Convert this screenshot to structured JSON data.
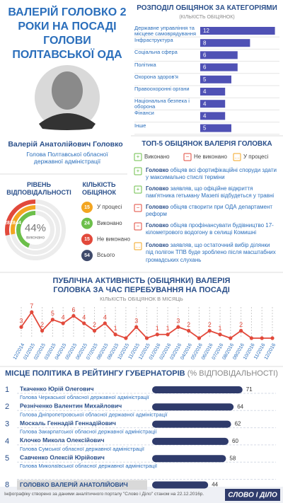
{
  "header": {
    "title": "ВАЛЕРІЙ ГОЛОВКО 2 РОКИ НА ПОСАДІ ГОЛОВИ ПОЛТАВСЬКОЇ ОДА"
  },
  "profile": {
    "name": "Валерій Анатолійович Головко",
    "position": "Голова Полтавської обласної державної адміністрації"
  },
  "chart_data": [
    {
      "type": "hbar",
      "title": "РОЗПОДІЛ ОБІЦЯНОК ЗА КАТЕГОРІЯМИ",
      "subtitle": "(КІЛЬКІСТЬ ОБІЦЯНОК)",
      "categories": [
        "Державне управління та місцеве самоврядування",
        "Інфраструктура",
        "Соціальна сфера",
        "Політика",
        "Охорона здоров'я",
        "Правоохоронні органи",
        "Національна безпека і оборона",
        "Фінанси",
        "Інше"
      ],
      "values": [
        12,
        8,
        6,
        6,
        5,
        4,
        4,
        4,
        5
      ],
      "color": "#4f51b5",
      "xlim": [
        0,
        12.5
      ]
    },
    {
      "type": "rings",
      "title": "РІВЕНЬ ВІДПОВІДАЛЬНОСТІ",
      "center": {
        "value": 44,
        "label": "44%"
      },
      "center_caption": "виконано",
      "rings": [
        {
          "value": 28,
          "color": "#e2493b"
        },
        {
          "value": 28,
          "color": "#f3a521"
        },
        {
          "value": 44,
          "color": "#6cbf4a"
        }
      ],
      "ylim": [
        0,
        100
      ]
    },
    {
      "type": "counts",
      "title": "КІЛЬКІСТЬ ОБІЦЯНОК",
      "series": [
        {
          "name": "У процесі",
          "value": 15,
          "color": "#f3a521"
        },
        {
          "name": "Виконано",
          "value": 24,
          "color": "#6cbf4a"
        },
        {
          "name": "Не виконано",
          "value": 15,
          "color": "#e2493b"
        },
        {
          "name": "Всього",
          "value": 54,
          "color": "#3f4a6b"
        }
      ]
    },
    {
      "type": "line",
      "title": "ПУБЛІЧНА АКТИВНІСТЬ (ОБІЦЯНКИ) ВАЛЕРІЯ ГОЛОВКА ЗА ЧАС ПЕРЕБУВАННЯ НА ПОСАДІ",
      "subtitle": "КІЛЬКІСТЬ ОБІЦЯНОК В МІСЯЦЬ",
      "categories": [
        "12/2014",
        "01/2015",
        "02/2015",
        "03/2015",
        "04/2015",
        "05/2015",
        "06/2015",
        "07/2015",
        "08/2015",
        "09/2015",
        "10/2015",
        "11/2015",
        "12/2015",
        "01/2016",
        "02/2016",
        "03/2016",
        "04/2016",
        "05/2016",
        "06/2016",
        "07/2016",
        "08/2016",
        "09/2016",
        "10/2016",
        "11/2016",
        "12/2016"
      ],
      "values": [
        3,
        7,
        2,
        5,
        4,
        6,
        4,
        2,
        4,
        1,
        0,
        3,
        0,
        1,
        1,
        3,
        2,
        0,
        2,
        1,
        0,
        2,
        0,
        0,
        0
      ],
      "color": "#e2493b",
      "ylim": [
        0,
        8
      ],
      "grid": true
    },
    {
      "type": "rating",
      "title": "МІСЦЕ ПОЛІТИКА В РЕЙТИНГУ ГУБЕРНАТОРІВ",
      "subtitle": "(% ВІДПОВІДАЛЬНОСТІ)",
      "rows": [
        {
          "rank": 1,
          "name": "Ткаченко Юрій Олегович",
          "position": "Голова Черкаської обласної державної адміністрації"
        },
        {
          "rank": 2,
          "name": "Резніченко Валентин Михайлович",
          "position": "Голова Дніпропетровської обласної державної адміністрації"
        },
        {
          "rank": 3,
          "name": "Москаль Геннадій Геннадійович",
          "position": "Голова Закарпатської обласної державної адміністрації"
        },
        {
          "rank": 4,
          "name": "Клочко Микола Олексійович",
          "position": "Голова Сумської обласної державної адміністрації"
        },
        {
          "rank": 5,
          "name": "Савченко Олексій Юрійович",
          "position": "Голова Миколаївської обласної державної адміністрації"
        },
        {
          "rank": 8,
          "name": "ГОЛОВКО ВАЛЕРІЙ АНАТОЛІЙОВИЧ",
          "highlight": true
        }
      ],
      "values": [
        71,
        64,
        62,
        60,
        58,
        44
      ],
      "color": "#2f3b6b",
      "xlim": [
        0,
        75
      ]
    }
  ],
  "top5": {
    "title": "ТОП-5 ОБІЦЯНОК ВАЛЕРІЯ ГОЛОВКА",
    "legend": [
      {
        "name": "Виконано",
        "color": "#6cbf4a"
      },
      {
        "name": "Не виконано",
        "color": "#e2493b"
      },
      {
        "name": "У процесі",
        "color": "#f3a521"
      }
    ],
    "items": [
      {
        "lead": "Головко",
        "text": "обіцяв всі фортифікаційні споруди здати у максимально стислі терміни",
        "color": "#6cbf4a"
      },
      {
        "lead": "Головко",
        "text": "заявляв, що офіційне відкриття пам'ятника гетьману Мазепі відбудеться у травні",
        "color": "#6cbf4a"
      },
      {
        "lead": "Головко",
        "text": "обіцяв створити при ОДА департамент реформ",
        "color": "#e2493b"
      },
      {
        "lead": "Головко",
        "text": "обіцяв профінансувати будівництво 17-кілометрового водогону в селищі Комишні",
        "color": "#e2493b"
      },
      {
        "lead": "Головко",
        "text": "заявляв, що остаточний вибір ділянки під полігон ТПВ буде зроблено після масштабних громадських слухань",
        "color": "#f3a521"
      }
    ]
  },
  "footer": {
    "note": "Інфографіку створено за даними аналітичного порталу \"Слово і Діло\" станом на 22.12.2016р.",
    "logo": "СЛОВО І ДІЛО"
  }
}
